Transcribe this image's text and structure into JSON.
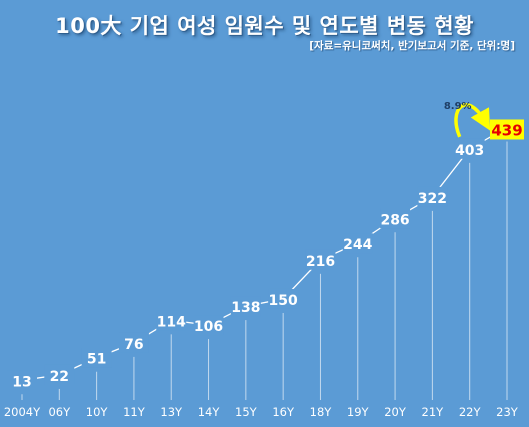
{
  "title": "100大 기업 여성 임원수 및 연도별 변동 현황",
  "source": "[자료=유니코써치, 반기보고서 기준, 단위:명]",
  "colors": {
    "background": "#5b9bd5",
    "text": "#ffffff",
    "highlight_box": "#ffff00",
    "highlight_text": "#e60000",
    "arrow": "#ffff00"
  },
  "chart_data": {
    "type": "line",
    "categories": [
      "2004Y",
      "06Y",
      "10Y",
      "11Y",
      "13Y",
      "14Y",
      "15Y",
      "16Y",
      "18Y",
      "19Y",
      "20Y",
      "21Y",
      "22Y",
      "23Y"
    ],
    "values": [
      13,
      22,
      51,
      76,
      114,
      106,
      138,
      150,
      216,
      244,
      286,
      322,
      403,
      439
    ],
    "data_labels": [
      "13",
      "22",
      "51",
      "76",
      "114",
      "106",
      "138",
      "150",
      "216",
      "244",
      "286",
      "322",
      "403",
      "439"
    ],
    "annotation": {
      "text": "8.9%",
      "from": "22Y",
      "to": "23Y"
    },
    "highlight": {
      "category": "23Y",
      "label": "439"
    },
    "grid": false,
    "legend": "none",
    "ylim": [
      0,
      460
    ]
  }
}
